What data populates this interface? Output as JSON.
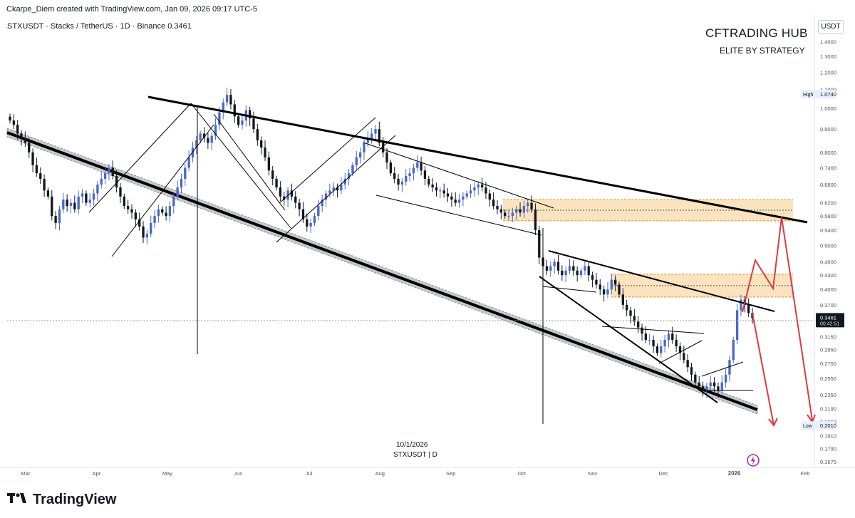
{
  "header": {
    "created_by": "Ckarpe_Diem created with TradingView.com, Jan 09, 2026 09:17 UTC-5",
    "symbol_line": "STXUSDT · Stacks / TetherUS · 1D · Binance",
    "last_price": "0.3461"
  },
  "branding": {
    "title": "CFTRADING HUB",
    "subtitle": "ELITE BY STRATEGY",
    "logo_text": "TradingView"
  },
  "toolbar": {
    "currency_label": "USDT"
  },
  "annotations": {
    "date_note": "10/1/2026",
    "symbol_note": "STXUSDT | D"
  },
  "colors": {
    "up": "#4a67c9",
    "down": "#131722",
    "zone_fill": "#fbd9ab",
    "zone_border": "#e58a1f",
    "projection": "#e0393f",
    "trendline": "#000000",
    "channel_band": "#b8b9bd"
  },
  "chart_data": {
    "type": "candlestick",
    "x_axis_labels": [
      "Mar",
      "Apr",
      "May",
      "Jun",
      "Jul",
      "Aug",
      "Sep",
      "Oct",
      "Nov",
      "Dec",
      "2026",
      "Feb"
    ],
    "y_axis_ticks": [
      "1.4000",
      "1.3000",
      "1.2000",
      "1.1000",
      "1.0000",
      "0.9000",
      "0.8000",
      "0.7400",
      "0.6800",
      "0.6200",
      "0.5800",
      "0.5400",
      "0.5000",
      "0.4600",
      "0.4300",
      "0.4000",
      "0.3700",
      "0.3150",
      "0.2950",
      "0.2750",
      "0.2550",
      "0.2350",
      "0.2190",
      "0.2050",
      "0.1910",
      "0.1790",
      "0.1675"
    ],
    "y_scale": "log",
    "ylim": [
      0.165,
      1.58
    ],
    "price_labels": [
      {
        "tag": "High",
        "value": "1.0740"
      },
      {
        "tag": "Low",
        "value": "0.2010"
      },
      {
        "tag": "",
        "value": "0.3461",
        "sub": "00:42:51"
      }
    ],
    "resistance_zones": [
      {
        "low": 0.566,
        "high": 0.63
      },
      {
        "low": 0.385,
        "high": 0.432
      }
    ],
    "close_series": [
      0.94,
      0.92,
      0.88,
      0.86,
      0.84,
      0.8,
      0.75,
      0.72,
      0.7,
      0.66,
      0.64,
      0.58,
      0.56,
      0.6,
      0.63,
      0.61,
      0.62,
      0.6,
      0.64,
      0.65,
      0.62,
      0.63,
      0.65,
      0.68,
      0.7,
      0.72,
      0.74,
      0.71,
      0.67,
      0.64,
      0.61,
      0.6,
      0.59,
      0.57,
      0.55,
      0.52,
      0.53,
      0.56,
      0.58,
      0.6,
      0.59,
      0.58,
      0.61,
      0.64,
      0.67,
      0.7,
      0.74,
      0.78,
      0.82,
      0.85,
      0.88,
      0.86,
      0.84,
      0.87,
      0.92,
      0.98,
      1.03,
      1.07,
      1.02,
      0.96,
      0.92,
      0.94,
      0.99,
      0.95,
      0.9,
      0.85,
      0.82,
      0.78,
      0.73,
      0.7,
      0.67,
      0.64,
      0.63,
      0.66,
      0.64,
      0.62,
      0.6,
      0.57,
      0.55,
      0.56,
      0.58,
      0.61,
      0.63,
      0.65,
      0.66,
      0.67,
      0.66,
      0.68,
      0.7,
      0.72,
      0.75,
      0.78,
      0.8,
      0.84,
      0.86,
      0.88,
      0.9,
      0.84,
      0.8,
      0.76,
      0.72,
      0.7,
      0.68,
      0.69,
      0.71,
      0.72,
      0.74,
      0.76,
      0.73,
      0.7,
      0.68,
      0.67,
      0.66,
      0.66,
      0.65,
      0.64,
      0.63,
      0.62,
      0.63,
      0.64,
      0.65,
      0.66,
      0.67,
      0.68,
      0.67,
      0.65,
      0.63,
      0.61,
      0.6,
      0.59,
      0.58,
      0.58,
      0.59,
      0.6,
      0.59,
      0.61,
      0.62,
      0.6,
      0.54,
      0.47,
      0.45,
      0.44,
      0.45,
      0.46,
      0.44,
      0.43,
      0.44,
      0.45,
      0.44,
      0.43,
      0.44,
      0.45,
      0.43,
      0.42,
      0.41,
      0.4,
      0.39,
      0.4,
      0.42,
      0.41,
      0.39,
      0.37,
      0.36,
      0.35,
      0.34,
      0.33,
      0.32,
      0.31,
      0.31,
      0.3,
      0.29,
      0.3,
      0.31,
      0.32,
      0.31,
      0.3,
      0.29,
      0.28,
      0.27,
      0.26,
      0.25,
      0.245,
      0.24,
      0.245,
      0.25,
      0.245,
      0.24,
      0.25,
      0.26,
      0.28,
      0.31,
      0.36,
      0.38,
      0.37,
      0.355,
      0.346
    ]
  }
}
